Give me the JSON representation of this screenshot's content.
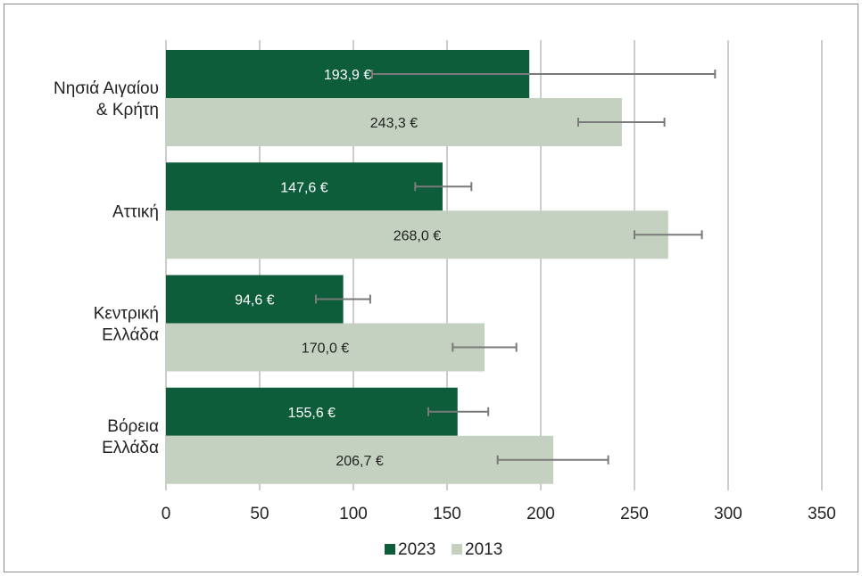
{
  "chart_data": {
    "type": "bar",
    "orientation": "horizontal",
    "categories": [
      [
        "Νησιά Αιγαίου",
        "& Κρήτη"
      ],
      [
        "Αττική"
      ],
      [
        "Κεντρική",
        "Ελλάδα"
      ],
      [
        "Βόρεια",
        "Ελλάδα"
      ]
    ],
    "series": [
      {
        "name": "2023",
        "color": "#0d5c3a",
        "label_color": "#ffffff",
        "values": [
          193.9,
          147.6,
          94.6,
          155.6
        ],
        "labels": [
          "193,9 €",
          "147,6 €",
          "94,6 €",
          "155,6 €"
        ],
        "error_low": [
          110,
          133,
          80,
          140
        ],
        "error_high": [
          293,
          163,
          109,
          172
        ]
      },
      {
        "name": "2013",
        "color": "#c5d1c0",
        "label_color": "#222222",
        "values": [
          243.3,
          268.0,
          170.0,
          206.7
        ],
        "labels": [
          "243,3 €",
          "268,0 €",
          "170,0 €",
          "206,7 €"
        ],
        "error_low": [
          220,
          250,
          153,
          177
        ],
        "error_high": [
          266,
          286,
          187,
          236
        ]
      }
    ],
    "xlim": [
      0,
      350
    ],
    "xticks": [
      0,
      50,
      100,
      150,
      200,
      250,
      300,
      350
    ],
    "xtick_labels": [
      "0",
      "50",
      "100",
      "150",
      "200",
      "250",
      "300",
      "350"
    ],
    "grid": "vertical",
    "legend": "bottom",
    "error_bar_color": "#7a7a7a"
  }
}
